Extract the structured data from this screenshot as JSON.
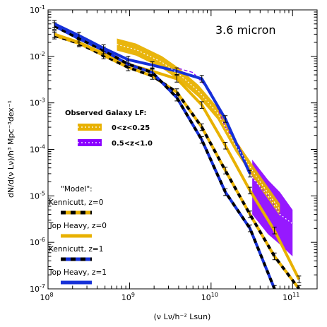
{
  "chart_data": {
    "type": "line",
    "title": "",
    "xscale": "log",
    "yscale": "log",
    "xlim": [
      100000000.0,
      200000000000.0
    ],
    "ylim": [
      1e-07,
      0.1
    ],
    "xlabel": "(ν Lν/h⁻² Lsun)",
    "ylabel": "dN/d(ν Lν)/h³ Mpc⁻³dex⁻¹",
    "band_label": "3.6 micron",
    "colors": {
      "gold": "#e8b100",
      "purple": "#8b00ff",
      "blue": "#1530d8",
      "black": "#000000"
    },
    "x_tick_labels": [
      "10^8",
      "10^9",
      "10^10",
      "10^11"
    ],
    "y_tick_labels": [
      "10^-7",
      "10^-6",
      "10^-5",
      "10^-4",
      "10^-3",
      "10^-2",
      "10^-1"
    ],
    "observed_title": "Observed Galaxy LF:",
    "observed": [
      {
        "name": "0<z<0.25",
        "color": "#e8b100",
        "x": [
          700000000.0,
          1200000000.0,
          2500000000.0,
          4000000000.0,
          7000000000.0,
          12000000000.0,
          20000000000.0,
          40000000000.0,
          70000000000.0
        ],
        "y": [
          0.018,
          0.014,
          0.0075,
          0.0042,
          0.0018,
          0.0006,
          0.00012,
          2e-05,
          5e-06
        ]
      },
      {
        "name": "0.5<z<1.0",
        "color": "#8b00ff",
        "x": [
          4000000000.0,
          6000000000.0,
          10000000000.0,
          15000000000.0,
          22000000000.0,
          32000000000.0,
          50000000000.0,
          70000000000.0,
          100000000000.0
        ],
        "y": [
          0.0055,
          0.0045,
          0.0017,
          0.0003,
          0.00012,
          2.5e-05,
          1e-05,
          4e-06,
          2.5e-06
        ],
        "band_upper": [
          null,
          null,
          null,
          null,
          null,
          6e-05,
          2.2e-05,
          1.2e-05,
          5e-06
        ],
        "band_lower": [
          null,
          null,
          null,
          null,
          null,
          4e-06,
          1.5e-06,
          9e-07,
          5e-07
        ]
      }
    ],
    "model_title": "\"Model\":",
    "models": [
      {
        "name": "Kennicutt, z=0",
        "style": "gold-black-dashed",
        "x": [
          120000000.0,
          240000000.0,
          480000000.0,
          960000000.0,
          1900000000.0,
          3800000000.0,
          7700000000.0,
          15000000000.0,
          30000000000.0,
          60000000000.0,
          120000000000.0
        ],
        "y": [
          0.028,
          0.019,
          0.0105,
          0.0058,
          0.0038,
          0.0017,
          0.0003,
          3.5e-05,
          4e-06,
          5e-07,
          1e-07
        ]
      },
      {
        "name": "Top Heavy, z=0",
        "style": "gold-solid",
        "x": [
          120000000.0,
          240000000.0,
          480000000.0,
          960000000.0,
          1900000000.0,
          3800000000.0,
          7700000000.0,
          15000000000.0,
          30000000000.0,
          60000000000.0,
          120000000000.0
        ],
        "y": [
          0.03,
          0.02,
          0.0115,
          0.0068,
          0.0048,
          0.0033,
          0.0009,
          0.00012,
          1.3e-05,
          1.8e-06,
          1.6e-07
        ]
      },
      {
        "name": "Kennicutt, z=1",
        "style": "blue-black-dashed",
        "x": [
          120000000.0,
          240000000.0,
          480000000.0,
          960000000.0,
          1900000000.0,
          3800000000.0,
          7700000000.0,
          15000000000.0,
          30000000000.0,
          60000000000.0
        ],
        "y": [
          0.045,
          0.024,
          0.0135,
          0.0068,
          0.0045,
          0.0013,
          0.00016,
          1.2e-05,
          2e-06,
          1e-07
        ]
      },
      {
        "name": "Top Heavy, z=1",
        "style": "blue-solid",
        "x": [
          120000000.0,
          240000000.0,
          480000000.0,
          960000000.0,
          1900000000.0,
          3800000000.0,
          7700000000.0,
          15000000000.0,
          30000000000.0
        ],
        "y": [
          0.05,
          0.028,
          0.015,
          0.0085,
          0.0065,
          0.0048,
          0.0033,
          0.00045,
          3e-05
        ]
      }
    ]
  }
}
